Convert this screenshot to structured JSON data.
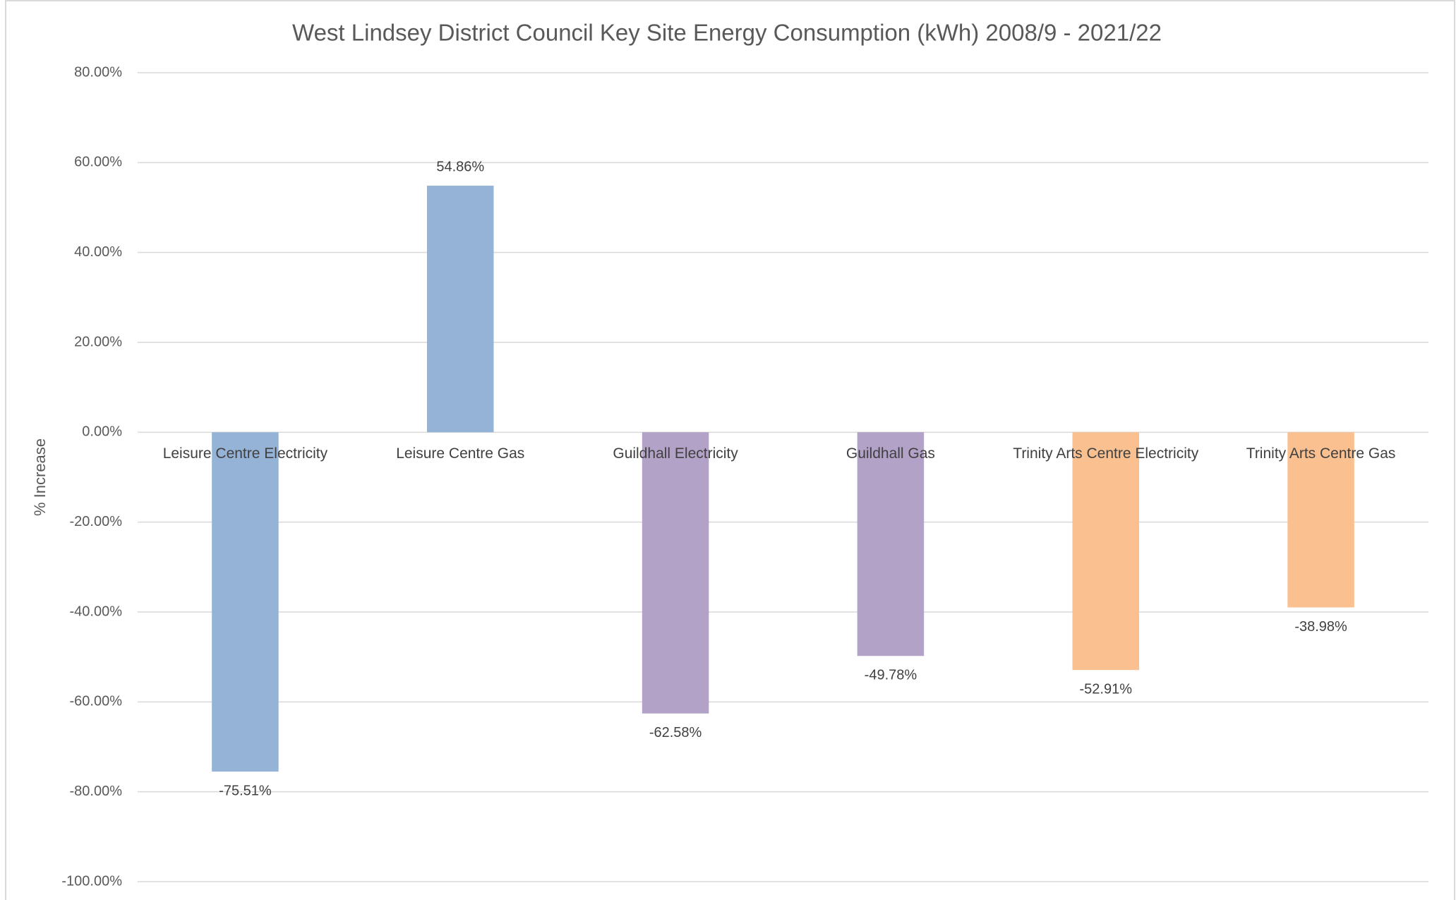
{
  "chart_data": {
    "type": "bar",
    "title": "West Lindsey District Council Key Site Energy Consumption (kWh) 2008/9 - 2021/22",
    "y_label": "% Increase",
    "categories": [
      "Leisure Centre Electricity",
      "Leisure Centre Gas",
      "Guildhall Electricity",
      "Guildhall Gas",
      "Trinity Arts Centre Electricity",
      "Trinity Arts Centre Gas"
    ],
    "values": [
      -75.51,
      54.86,
      -62.58,
      -49.78,
      -52.91,
      -38.98
    ],
    "value_labels": [
      "-75.51%",
      "54.86%",
      "-62.58%",
      "-49.78%",
      "-52.91%",
      "-38.98%"
    ],
    "colors": [
      "#95b3d7",
      "#95b3d7",
      "#b3a2c7",
      "#b3a2c7",
      "#fac090",
      "#fac090"
    ],
    "ylim": [
      -100,
      80
    ],
    "yticks": [
      {
        "value": -100,
        "label": "-100.00%"
      },
      {
        "value": -80,
        "label": "-80.00%"
      },
      {
        "value": -60,
        "label": "-60.00%"
      },
      {
        "value": -40,
        "label": "-40.00%"
      },
      {
        "value": -20,
        "label": "-20.00%"
      },
      {
        "value": 0,
        "label": "0.00%"
      },
      {
        "value": 20,
        "label": "20.00%"
      },
      {
        "value": 40,
        "label": "40.00%"
      },
      {
        "value": 60,
        "label": "60.00%"
      },
      {
        "value": 80,
        "label": "80.00%"
      }
    ],
    "grid": true
  }
}
